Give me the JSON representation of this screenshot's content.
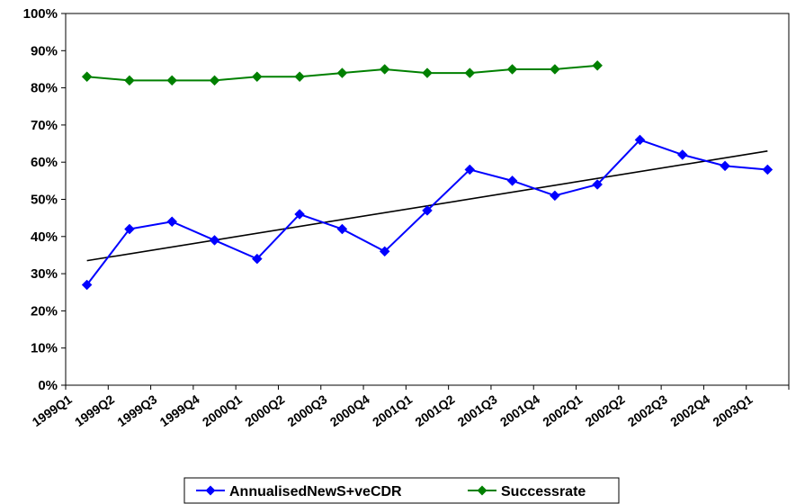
{
  "chart_data": {
    "type": "line",
    "title": "",
    "xlabel": "",
    "ylabel": "",
    "ylim": [
      0,
      100
    ],
    "y_ticks": [
      "0%",
      "10%",
      "20%",
      "30%",
      "40%",
      "50%",
      "60%",
      "70%",
      "80%",
      "90%",
      "100%"
    ],
    "categories": [
      "1999Q1",
      "1999Q2",
      "1999Q3",
      "1999Q4",
      "2000Q1",
      "2000Q2",
      "2000Q3",
      "2000Q4",
      "2001Q1",
      "2001Q2",
      "2001Q3",
      "2001Q4",
      "2002Q1",
      "2002Q2",
      "2002Q3",
      "2002Q4",
      "2003Q1"
    ],
    "grid": false,
    "legend_position": "bottom",
    "series": [
      {
        "name": "AnnualisedNewS+veCDR",
        "color": "#0000FF",
        "marker": "diamond",
        "values": [
          27,
          42,
          44,
          39,
          34,
          46,
          42,
          36,
          47,
          58,
          55,
          51,
          54,
          66,
          62,
          59,
          58
        ]
      },
      {
        "name": "Successrate",
        "color": "#008000",
        "marker": "diamond",
        "values": [
          83,
          82,
          82,
          82,
          83,
          83,
          84,
          85,
          84,
          84,
          85,
          85,
          86,
          null,
          null,
          null,
          null
        ]
      }
    ],
    "trendline": {
      "series": "AnnualisedNewS+veCDR",
      "type": "linear",
      "color": "#000000",
      "start": 33.5,
      "end": 63
    }
  }
}
